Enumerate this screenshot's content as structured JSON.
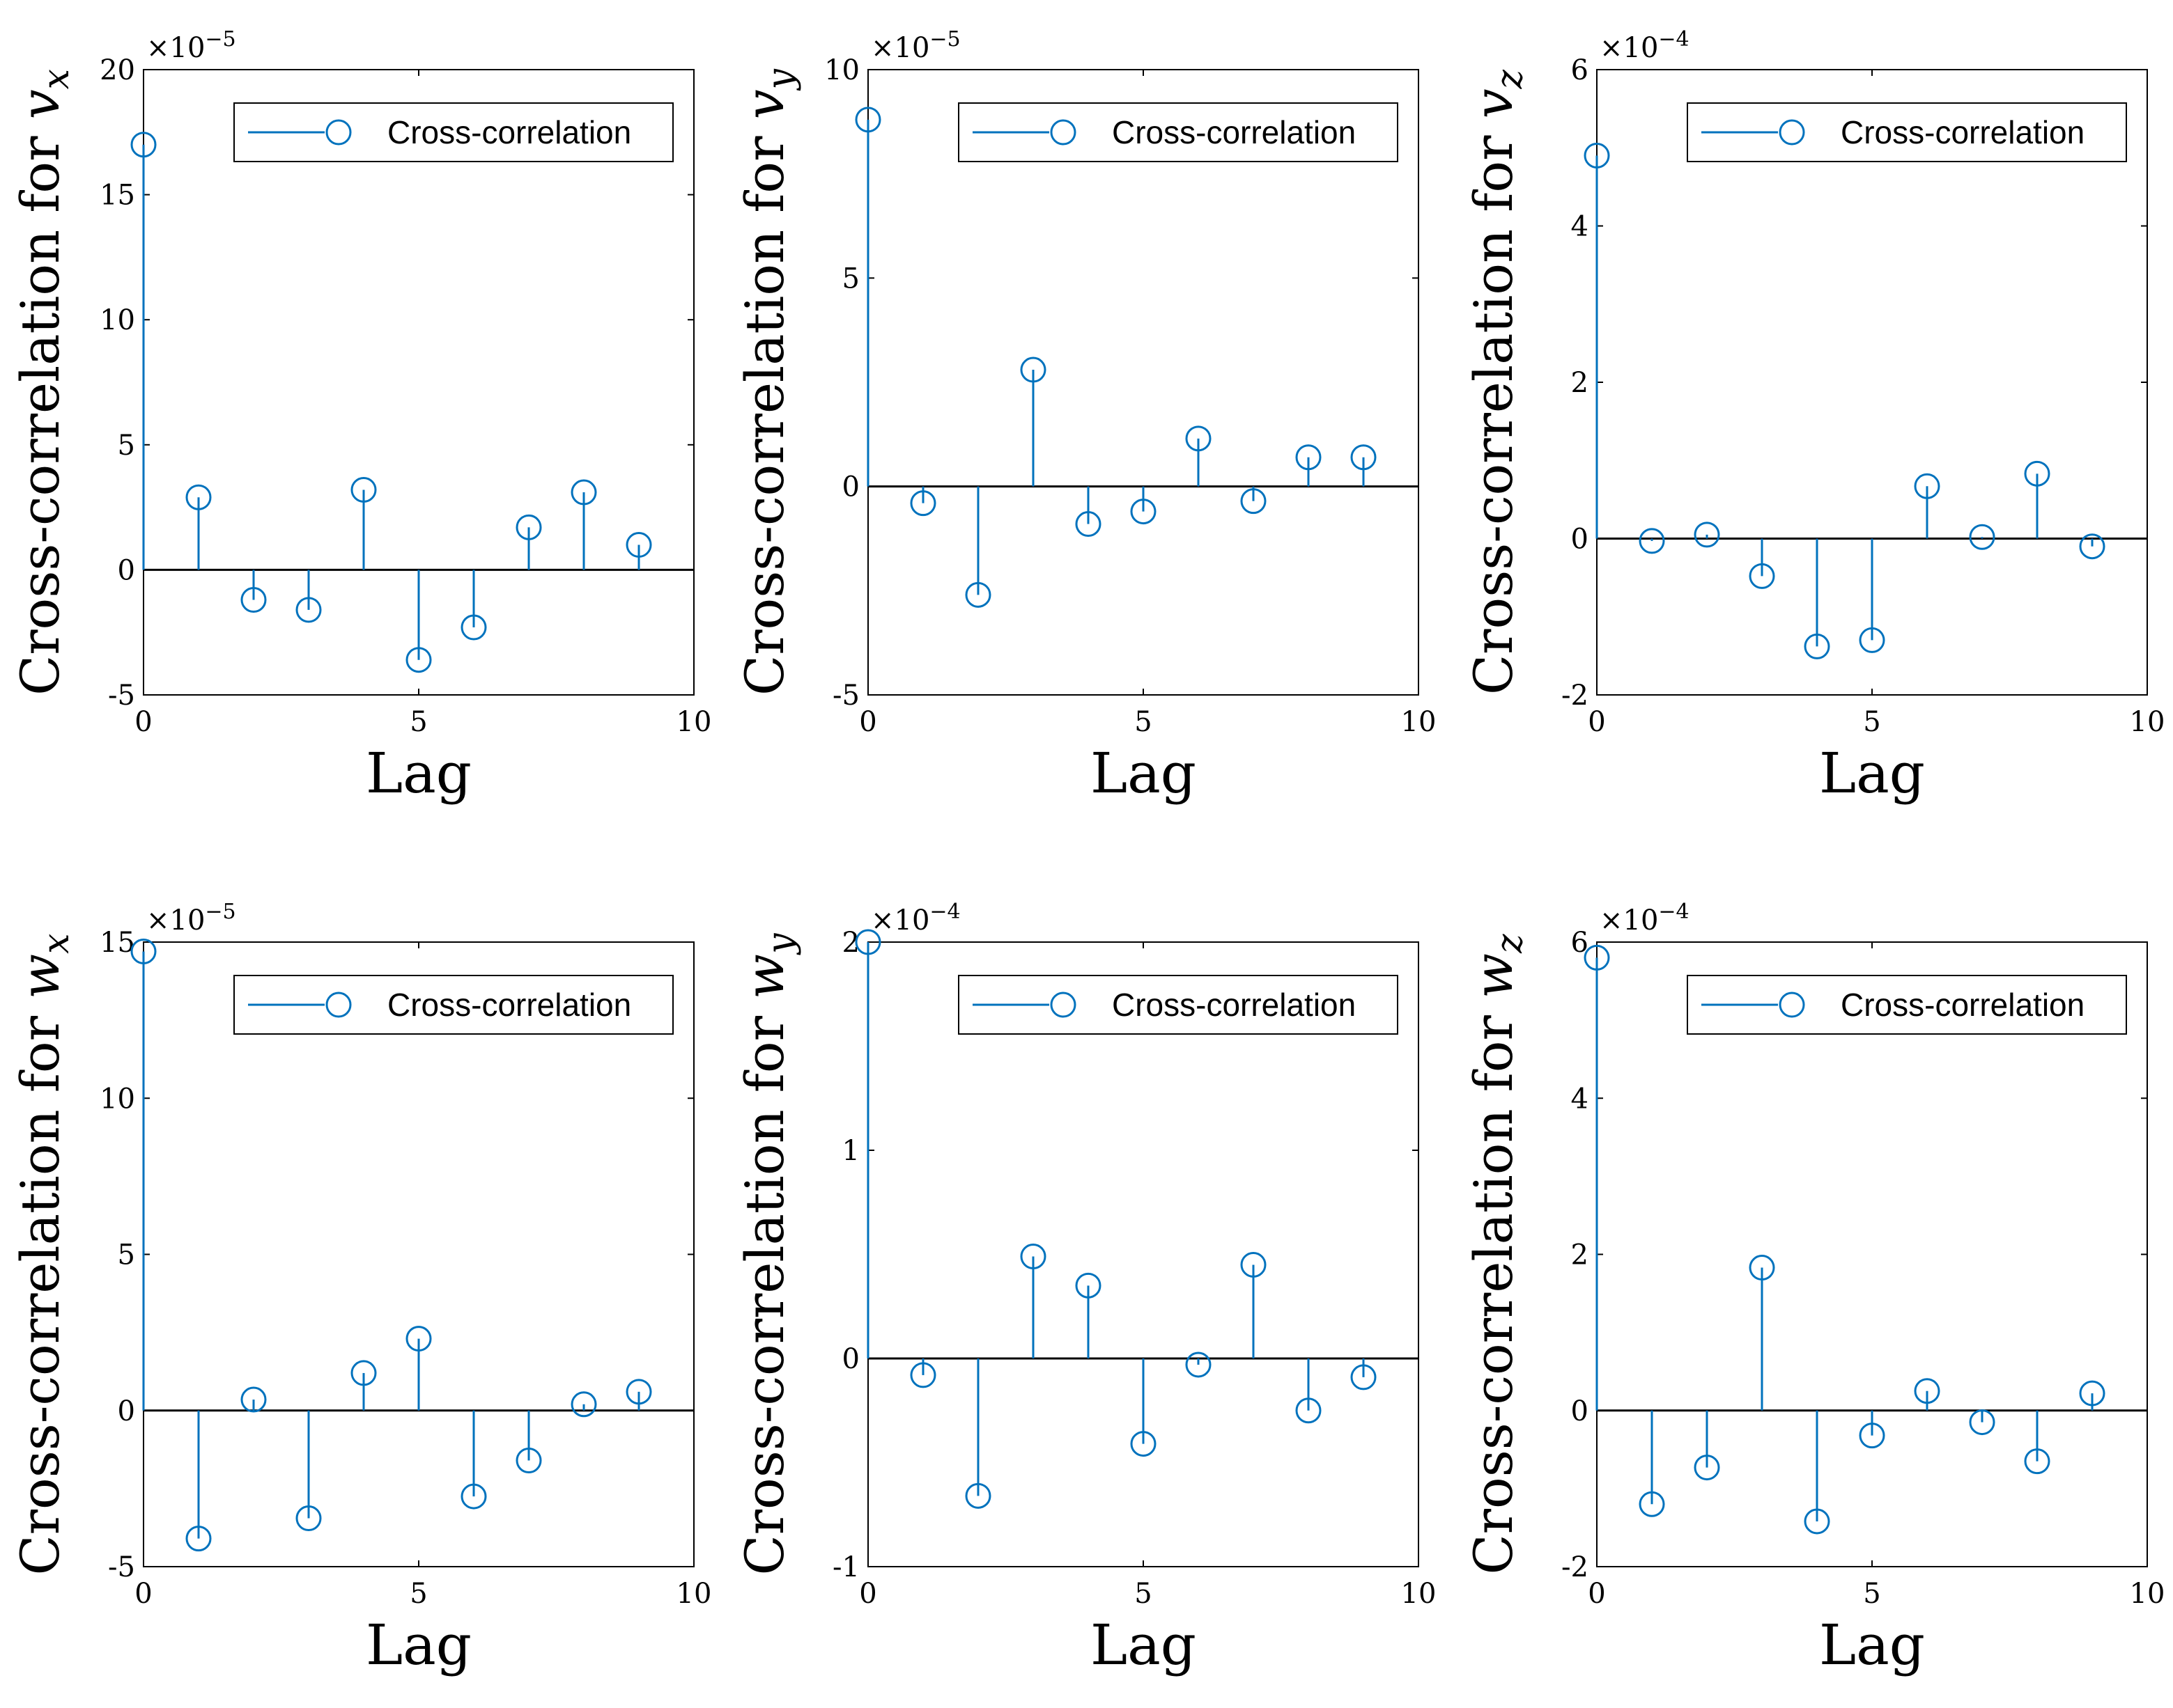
{
  "chart_data": [
    {
      "type": "stem",
      "ylabel": "Cross-correlation for",
      "ylabel_var": "v",
      "ylabel_sub": "x",
      "xlabel": "Lag",
      "legend": "Cross-correlation",
      "legend_position": "top-right",
      "exponent_label": "×10",
      "exponent": "−5",
      "xlim": [
        0,
        10
      ],
      "ylim": [
        -5,
        20
      ],
      "xticks": [
        0,
        5,
        10
      ],
      "yticks": [
        -5,
        0,
        5,
        10,
        15,
        20
      ],
      "ytick_labels": [
        "-5",
        "0",
        "5",
        "10",
        "15",
        "20"
      ],
      "x": [
        0,
        1,
        2,
        3,
        4,
        5,
        6,
        7,
        8,
        9
      ],
      "values": [
        17.0,
        2.9,
        -1.2,
        -1.6,
        3.2,
        -3.6,
        -2.3,
        1.7,
        3.1,
        1.0
      ]
    },
    {
      "type": "stem",
      "ylabel": "Cross-correlation for",
      "ylabel_var": "v",
      "ylabel_sub": "y",
      "xlabel": "Lag",
      "legend": "Cross-correlation",
      "legend_position": "top-right",
      "exponent_label": "×10",
      "exponent": "−5",
      "xlim": [
        0,
        10
      ],
      "ylim": [
        -5,
        10
      ],
      "xticks": [
        0,
        5,
        10
      ],
      "yticks": [
        -5,
        0,
        5,
        10
      ],
      "ytick_labels": [
        "-5",
        "0",
        "5",
        "10"
      ],
      "x": [
        0,
        1,
        2,
        3,
        4,
        5,
        6,
        7,
        8,
        9
      ],
      "values": [
        8.8,
        -0.4,
        -2.6,
        2.8,
        -0.9,
        -0.6,
        1.15,
        -0.35,
        0.7,
        0.7
      ]
    },
    {
      "type": "stem",
      "ylabel": "Cross-correlation for",
      "ylabel_var": "v",
      "ylabel_sub": "z",
      "xlabel": "Lag",
      "legend": "Cross-correlation",
      "legend_position": "top-right",
      "exponent_label": "×10",
      "exponent": "−4",
      "xlim": [
        0,
        10
      ],
      "ylim": [
        -2,
        6
      ],
      "xticks": [
        0,
        5,
        10
      ],
      "yticks": [
        -2,
        0,
        2,
        4,
        6
      ],
      "ytick_labels": [
        "-2",
        "0",
        "2",
        "4",
        "6"
      ],
      "x": [
        0,
        1,
        2,
        3,
        4,
        5,
        6,
        7,
        8,
        9
      ],
      "values": [
        4.9,
        -0.03,
        0.05,
        -0.48,
        -1.38,
        -1.3,
        0.67,
        0.02,
        0.83,
        -0.1
      ]
    },
    {
      "type": "stem",
      "ylabel": "Cross-correlation for",
      "ylabel_var": "w",
      "ylabel_sub": "x",
      "xlabel": "Lag",
      "legend": "Cross-correlation",
      "legend_position": "top-right",
      "exponent_label": "×10",
      "exponent": "−5",
      "xlim": [
        0,
        10
      ],
      "ylim": [
        -5,
        15
      ],
      "xticks": [
        0,
        5,
        10
      ],
      "yticks": [
        -5,
        0,
        5,
        10,
        15
      ],
      "ytick_labels": [
        "-5",
        "0",
        "5",
        "10",
        "15"
      ],
      "x": [
        0,
        1,
        2,
        3,
        4,
        5,
        6,
        7,
        8,
        9
      ],
      "values": [
        14.7,
        -4.1,
        0.35,
        -3.45,
        1.2,
        2.3,
        -2.75,
        -1.6,
        0.2,
        0.6
      ]
    },
    {
      "type": "stem",
      "ylabel": "Cross-correlation for",
      "ylabel_var": "w",
      "ylabel_sub": "y",
      "xlabel": "Lag",
      "legend": "Cross-correlation",
      "legend_position": "top-right",
      "exponent_label": "×10",
      "exponent": "−4",
      "xlim": [
        0,
        10
      ],
      "ylim": [
        -1,
        2
      ],
      "xticks": [
        0,
        5,
        10
      ],
      "yticks": [
        -1,
        0,
        1,
        2
      ],
      "ytick_labels": [
        "-1",
        "0",
        "1",
        "2"
      ],
      "x": [
        0,
        1,
        2,
        3,
        4,
        5,
        6,
        7,
        8,
        9
      ],
      "values": [
        2.0,
        -0.08,
        -0.66,
        0.49,
        0.35,
        -0.41,
        -0.03,
        0.45,
        -0.25,
        -0.09
      ]
    },
    {
      "type": "stem",
      "ylabel": "Cross-correlation for",
      "ylabel_var": "w",
      "ylabel_sub": "z",
      "xlabel": "Lag",
      "legend": "Cross-correlation",
      "legend_position": "top-right",
      "exponent_label": "×10",
      "exponent": "−4",
      "xlim": [
        0,
        10
      ],
      "ylim": [
        -2,
        6
      ],
      "xticks": [
        0,
        5,
        10
      ],
      "yticks": [
        -2,
        0,
        2,
        4,
        6
      ],
      "ytick_labels": [
        "-2",
        "0",
        "2",
        "4",
        "6"
      ],
      "x": [
        0,
        1,
        2,
        3,
        4,
        5,
        6,
        7,
        8,
        9
      ],
      "values": [
        5.8,
        -1.2,
        -0.73,
        1.83,
        -1.42,
        -0.32,
        0.25,
        -0.15,
        -0.65,
        0.22
      ]
    }
  ],
  "colors": {
    "series": "#0072BD",
    "axes": "#000000",
    "background": "#ffffff"
  }
}
